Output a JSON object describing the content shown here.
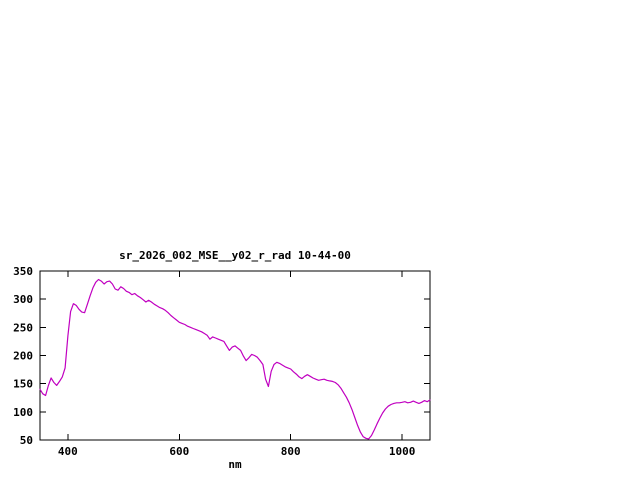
{
  "page": {
    "background": "#ffffff"
  },
  "chart_data": {
    "type": "line",
    "title": "sr_2026_002_MSE__y02_r_rad 10-44-00",
    "xlabel": "nm",
    "ylabel": "",
    "xlim": [
      350,
      1050
    ],
    "ylim": [
      50,
      350
    ],
    "xticks": [
      400,
      600,
      800,
      1000
    ],
    "yticks": [
      50,
      100,
      150,
      200,
      250,
      300,
      350
    ],
    "grid": false,
    "legend": "none",
    "line_color": "#c000c0",
    "axis_color": "#000000",
    "x": [
      350,
      355,
      360,
      365,
      370,
      375,
      380,
      385,
      390,
      395,
      400,
      405,
      410,
      415,
      420,
      425,
      430,
      435,
      440,
      445,
      450,
      455,
      460,
      465,
      470,
      475,
      480,
      485,
      490,
      495,
      500,
      505,
      510,
      515,
      520,
      525,
      530,
      535,
      540,
      545,
      550,
      555,
      560,
      565,
      570,
      575,
      580,
      585,
      590,
      595,
      600,
      605,
      610,
      615,
      620,
      625,
      630,
      635,
      640,
      645,
      650,
      655,
      660,
      665,
      670,
      675,
      680,
      685,
      690,
      695,
      700,
      705,
      710,
      715,
      720,
      725,
      730,
      735,
      740,
      745,
      750,
      755,
      760,
      765,
      770,
      775,
      780,
      785,
      790,
      795,
      800,
      805,
      810,
      815,
      820,
      825,
      830,
      835,
      840,
      845,
      850,
      855,
      860,
      865,
      870,
      875,
      880,
      885,
      890,
      895,
      900,
      905,
      910,
      915,
      920,
      925,
      930,
      935,
      940,
      945,
      950,
      955,
      960,
      965,
      970,
      975,
      980,
      985,
      990,
      995,
      1000,
      1005,
      1010,
      1015,
      1020,
      1025,
      1030,
      1035,
      1040,
      1045,
      1050
    ],
    "y": [
      140,
      132,
      129,
      147,
      160,
      152,
      147,
      154,
      162,
      178,
      235,
      278,
      292,
      289,
      282,
      277,
      276,
      291,
      306,
      320,
      330,
      335,
      332,
      327,
      331,
      332,
      327,
      318,
      316,
      322,
      319,
      314,
      312,
      308,
      310,
      306,
      303,
      299,
      295,
      298,
      295,
      291,
      288,
      285,
      283,
      280,
      276,
      271,
      267,
      263,
      259,
      257,
      255,
      252,
      250,
      248,
      246,
      244,
      242,
      239,
      236,
      229,
      233,
      231,
      229,
      227,
      225,
      217,
      209,
      215,
      217,
      213,
      209,
      199,
      191,
      196,
      202,
      200,
      197,
      191,
      184,
      158,
      145,
      172,
      184,
      188,
      186,
      183,
      180,
      178,
      176,
      171,
      167,
      162,
      159,
      163,
      166,
      163,
      160,
      158,
      156,
      157,
      158,
      156,
      155,
      154,
      152,
      148,
      142,
      134,
      126,
      116,
      104,
      90,
      76,
      64,
      56,
      53,
      52,
      58,
      68,
      79,
      89,
      98,
      105,
      110,
      113,
      115,
      116,
      116,
      117,
      118,
      116,
      117,
      119,
      117,
      115,
      117,
      120,
      118,
      121
    ]
  }
}
